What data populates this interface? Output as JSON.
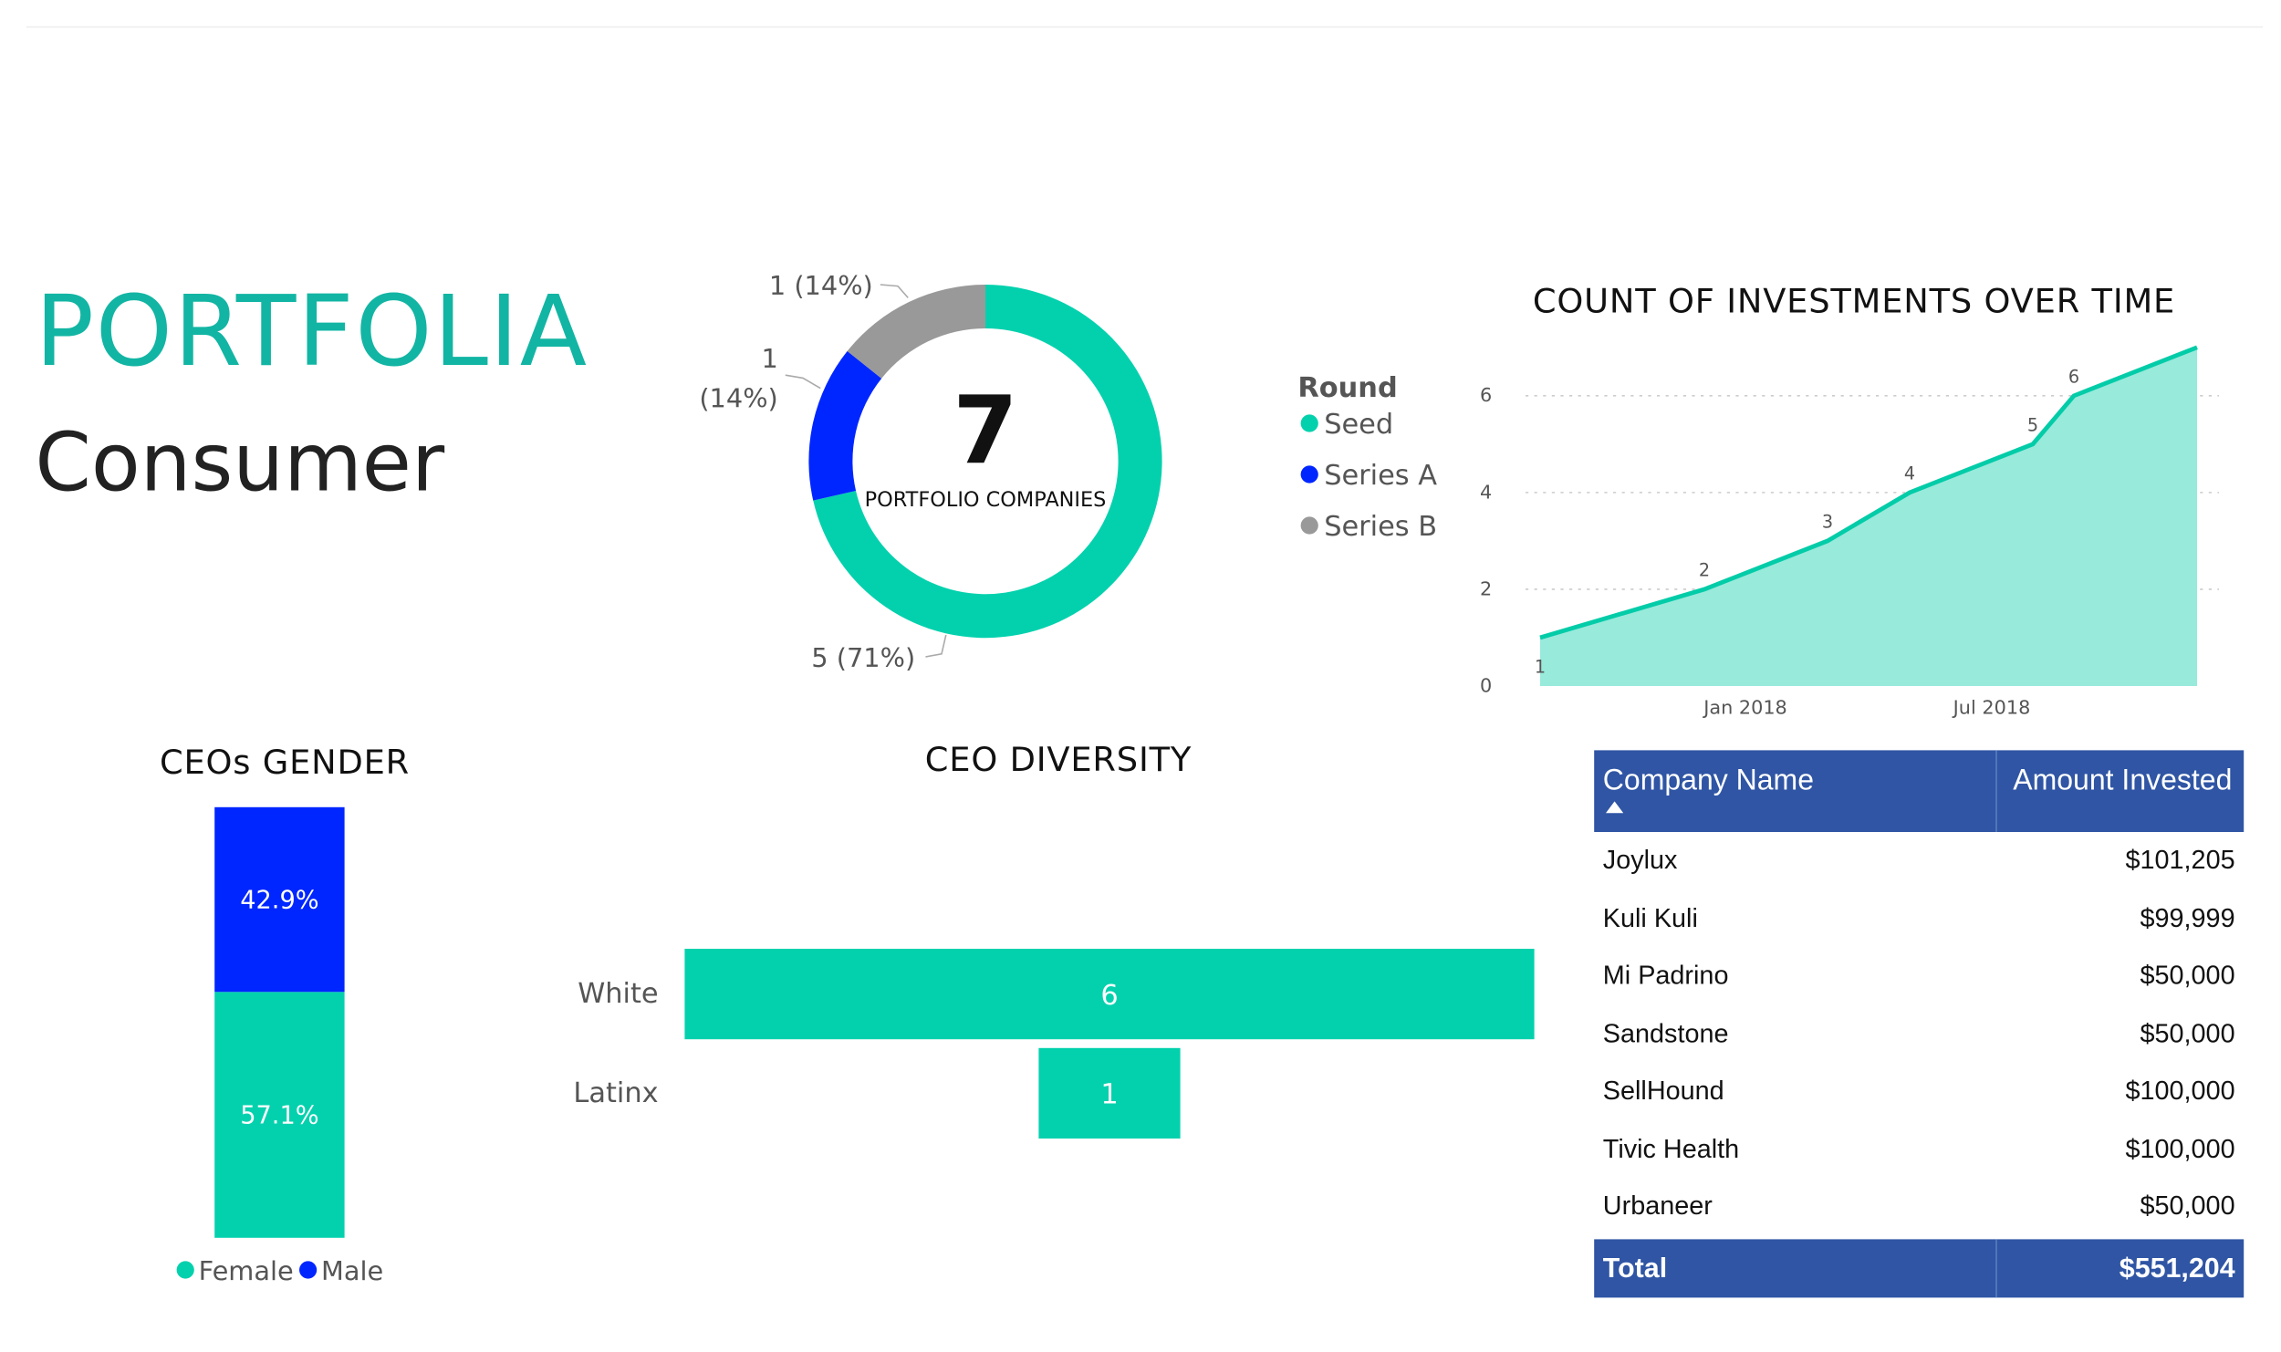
{
  "header": {
    "brand": "PORTFOLIA",
    "subtitle": "Consumer"
  },
  "colors": {
    "seed": "#03d1ad",
    "series_a": "#0026ff",
    "series_b": "#999999",
    "female": "#03d1ad",
    "male": "#0026ff",
    "area_fill": "#98eadb",
    "area_line": "#03cca8",
    "table_header": "#2f55a4",
    "brand": "#12b5a3"
  },
  "chart_data": [
    {
      "type": "pie",
      "center_value": "7",
      "center_label": "PORTFOLIO COMPANIES",
      "legend_title": "Round",
      "categories": [
        "Seed",
        "Series A",
        "Series B"
      ],
      "values": [
        5,
        1,
        1
      ],
      "data_labels": [
        "5 (71%)",
        "1 (14%)",
        "1 (14%)"
      ],
      "legend": "right"
    },
    {
      "type": "area",
      "title": "COUNT OF INVESTMENTS OVER TIME",
      "x": [
        "2017-08",
        "2017-12",
        "2018-03",
        "2018-05",
        "2018-08",
        "2018-09",
        "2018-12"
      ],
      "values": [
        1,
        2,
        3,
        4,
        5,
        6,
        7
      ],
      "xticks": [
        "Jan 2018",
        "Jul 2018"
      ],
      "yticks": [
        "0",
        "2",
        "4",
        "6"
      ],
      "ylim": [
        0,
        7
      ],
      "grid": true
    },
    {
      "type": "bar",
      "title": "CEOs GENDER",
      "orientation": "vertical-stacked-100",
      "categories": [
        "Female",
        "Male"
      ],
      "values": [
        57.1,
        42.9
      ],
      "data_labels": [
        "57.1%",
        "42.9%"
      ],
      "legend": "bottom"
    },
    {
      "type": "bar",
      "title": "CEO DIVERSITY",
      "orientation": "horizontal",
      "categories": [
        "White",
        "Latinx"
      ],
      "values": [
        6,
        1
      ],
      "data_labels": [
        "6",
        "1"
      ]
    },
    {
      "type": "table",
      "columns": [
        "Company Name",
        "Amount Invested"
      ],
      "rows": [
        [
          "Joylux",
          "$101,205"
        ],
        [
          "Kuli Kuli",
          "$99,999"
        ],
        [
          "Mi Padrino",
          "$50,000"
        ],
        [
          "Sandstone",
          "$50,000"
        ],
        [
          "SellHound",
          "$100,000"
        ],
        [
          "Tivic Health",
          "$100,000"
        ],
        [
          "Urbaneer",
          "$50,000"
        ]
      ],
      "total": [
        "Total",
        "$551,204"
      ]
    }
  ]
}
